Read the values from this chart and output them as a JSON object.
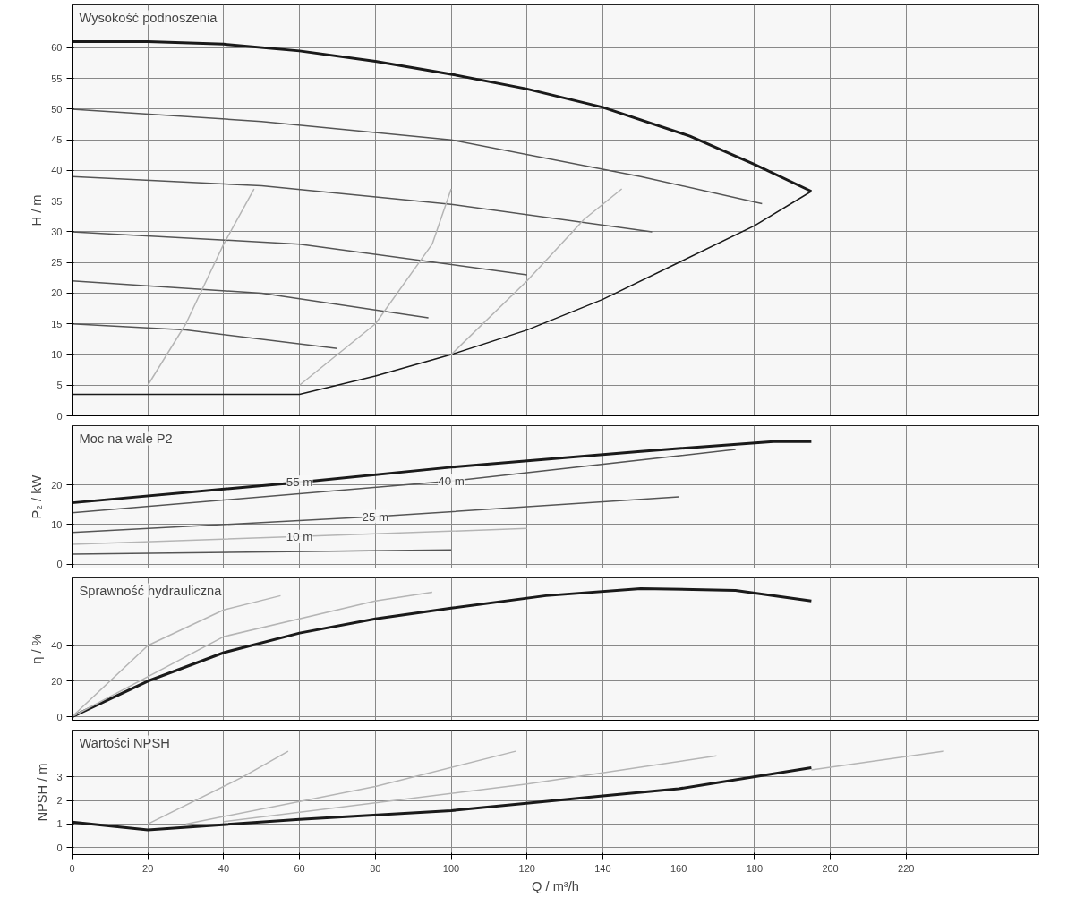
{
  "chart_data": [
    {
      "type": "line",
      "title": "Wysokość podnoszenia",
      "ylabel": "H / m",
      "xlim": [
        0,
        255
      ],
      "xticks": [
        0,
        20,
        40,
        60,
        80,
        100,
        120,
        140,
        160,
        180,
        200,
        220
      ],
      "ylim": [
        0,
        67
      ],
      "yticks": [
        0,
        5,
        10,
        15,
        20,
        25,
        30,
        35,
        40,
        45,
        50,
        55,
        60
      ],
      "grid": true,
      "tick_labels": "y",
      "marker": "none",
      "line_style": "solid",
      "series": [
        {
          "color": "#1a1a1a",
          "x": [
            0,
            20,
            40,
            60,
            80,
            100,
            120,
            140,
            163,
            180,
            195
          ],
          "values": [
            61,
            61,
            60.6,
            59.5,
            57.8,
            55.7,
            53.3,
            50.3,
            45.6,
            41,
            36.6
          ]
        },
        {
          "color": "#1a1a1a",
          "x": [
            0,
            60,
            80,
            100,
            120,
            140,
            160,
            180,
            195
          ],
          "values": [
            3.5,
            3.5,
            6.5,
            10,
            14,
            19,
            25,
            31,
            36.6
          ]
        },
        {
          "color": "#555555",
          "x": [
            0,
            50,
            100,
            150,
            182
          ],
          "values": [
            50,
            48,
            45,
            39,
            34.6
          ]
        },
        {
          "color": "#555555",
          "x": [
            0,
            50,
            100,
            153
          ],
          "values": [
            39,
            37.5,
            34.5,
            30
          ]
        },
        {
          "color": "#555555",
          "x": [
            0,
            60,
            120
          ],
          "values": [
            30,
            28,
            23
          ]
        },
        {
          "color": "#555555",
          "x": [
            0,
            50,
            94
          ],
          "values": [
            22,
            20,
            16
          ]
        },
        {
          "color": "#555555",
          "x": [
            0,
            30,
            70
          ],
          "values": [
            15,
            14,
            11
          ]
        },
        {
          "color": "#b5b5b5",
          "x": [
            20,
            30,
            40,
            48
          ],
          "values": [
            5,
            15,
            28,
            37
          ]
        },
        {
          "color": "#b5b5b5",
          "x": [
            60,
            80,
            95,
            100
          ],
          "values": [
            5,
            15,
            28,
            37
          ]
        },
        {
          "color": "#b5b5b5",
          "x": [
            100,
            120,
            135,
            145
          ],
          "values": [
            10,
            22,
            32,
            37
          ]
        }
      ]
    },
    {
      "type": "line",
      "title": "Moc na wale P2",
      "ylabel": "P₂ / kW",
      "xlim": [
        0,
        255
      ],
      "xticks": [
        0,
        20,
        40,
        60,
        80,
        100,
        120,
        140,
        160,
        180,
        200,
        220
      ],
      "ylim": [
        -1,
        35
      ],
      "yticks": [
        0,
        10,
        20
      ],
      "grid": true,
      "tick_labels": "y",
      "marker": "none",
      "line_style": "solid",
      "annotations": [
        {
          "text": "55 m",
          "x": 60,
          "y": 20.7
        },
        {
          "text": "40 m",
          "x": 100,
          "y": 21
        },
        {
          "text": "25 m",
          "x": 80,
          "y": 12
        },
        {
          "text": "10 m",
          "x": 60,
          "y": 7
        }
      ],
      "series": [
        {
          "color": "#1a1a1a",
          "x": [
            0,
            60,
            100,
            150,
            185,
            195
          ],
          "values": [
            15.5,
            20.7,
            24.5,
            28.5,
            31,
            31
          ]
        },
        {
          "color": "#555555",
          "x": [
            0,
            100,
            175
          ],
          "values": [
            13,
            21,
            29
          ]
        },
        {
          "color": "#555555",
          "x": [
            0,
            80,
            160
          ],
          "values": [
            8,
            12,
            17
          ]
        },
        {
          "color": "#555555",
          "x": [
            0,
            100
          ],
          "values": [
            2.5,
            3.6
          ]
        },
        {
          "color": "#b5b5b5",
          "x": [
            0,
            60,
            120
          ],
          "values": [
            5,
            7,
            9
          ]
        }
      ]
    },
    {
      "type": "line",
      "title": "Sprawność hydrauliczna",
      "ylabel": "η / %",
      "xlim": [
        0,
        255
      ],
      "xticks": [
        0,
        20,
        40,
        60,
        80,
        100,
        120,
        140,
        160,
        180,
        200,
        220
      ],
      "ylim": [
        -2,
        78
      ],
      "yticks": [
        0,
        20,
        40
      ],
      "grid": true,
      "tick_labels": "y",
      "marker": "none",
      "line_style": "solid",
      "series": [
        {
          "color": "#1a1a1a",
          "x": [
            0,
            20,
            40,
            60,
            80,
            100,
            125,
            150,
            175,
            195
          ],
          "values": [
            0,
            20,
            36,
            47,
            55,
            61,
            68,
            72,
            71,
            65
          ]
        },
        {
          "color": "#b5b5b5",
          "x": [
            0,
            20,
            40,
            55
          ],
          "values": [
            0,
            40,
            60,
            68
          ]
        },
        {
          "color": "#b5b5b5",
          "x": [
            0,
            40,
            80,
            95
          ],
          "values": [
            0,
            45,
            65,
            70
          ]
        }
      ]
    },
    {
      "type": "line",
      "title": "Wartości NPSH",
      "ylabel": "NPSH / m",
      "xlabel": "Q / m³/h",
      "xlim": [
        0,
        255
      ],
      "xticks": [
        0,
        20,
        40,
        60,
        80,
        100,
        120,
        140,
        160,
        180,
        200,
        220
      ],
      "ylim": [
        -0.3,
        5
      ],
      "yticks": [
        0,
        1,
        2,
        3
      ],
      "grid": true,
      "marker": "none",
      "line_style": "solid",
      "series": [
        {
          "color": "#1a1a1a",
          "x": [
            0,
            20,
            60,
            100,
            140,
            160,
            195
          ],
          "values": [
            1.08,
            0.75,
            1.2,
            1.57,
            2.2,
            2.5,
            3.4
          ]
        },
        {
          "color": "#b5b5b5",
          "x": [
            20,
            45,
            57
          ],
          "values": [
            1,
            3,
            4.1
          ]
        },
        {
          "color": "#b5b5b5",
          "x": [
            30,
            80,
            117
          ],
          "values": [
            1,
            2.6,
            4.1
          ]
        },
        {
          "color": "#b5b5b5",
          "x": [
            40,
            120,
            170
          ],
          "values": [
            1.1,
            2.7,
            3.9
          ]
        },
        {
          "color": "#b5b5b5",
          "x": [
            195,
            230
          ],
          "values": [
            3.3,
            4.1
          ]
        }
      ]
    }
  ]
}
